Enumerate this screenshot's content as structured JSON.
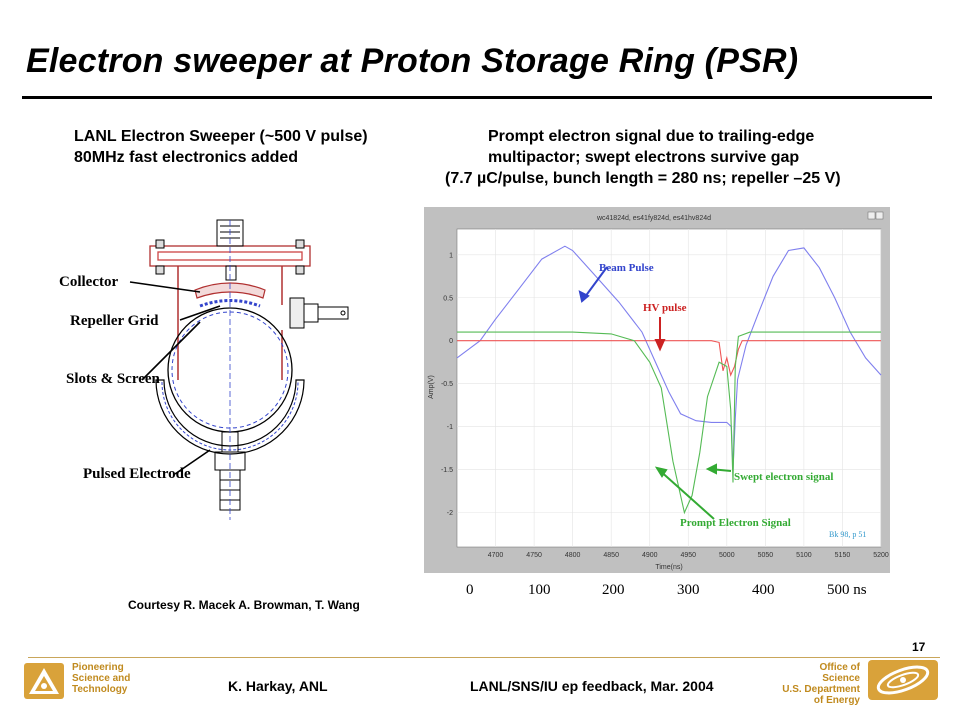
{
  "slide": {
    "title": "Electron sweeper at Proton Storage Ring (PSR)",
    "left_header": {
      "line1": "LANL Electron Sweeper (~500 V pulse)",
      "line2": "80MHz fast electronics added"
    },
    "right_header": {
      "line1": "Prompt electron signal due to trailing-edge",
      "line2": "multipactor; swept electrons survive gap",
      "line3": "(7.7 µC/pulse, bunch length = 280 ns; repeller –25 V)"
    },
    "diagram_labels": {
      "collector": "Collector",
      "repeller_grid": "Repeller Grid",
      "slots_screen": "Slots & Screen",
      "pulsed_electrode": "Pulsed Electrode"
    },
    "courtesy": "Courtesy  R. Macek  A. Browman,  T. Wang",
    "time_axis": [
      "0",
      "100",
      "200",
      "300",
      "400",
      "500 ns"
    ],
    "page_number": "17",
    "footer": {
      "author": "K. Harkay, ANL",
      "event": "LANL/SNS/IU ep feedback, Mar. 2004",
      "anl_lines": [
        "Pioneering",
        "Science and",
        "Technology"
      ],
      "doe_lines": [
        "Office of Science",
        "U.S. Department",
        "of Energy"
      ]
    },
    "colors": {
      "gold": "#c08a1e",
      "beam": "#8080ee",
      "hv": "#ee5555",
      "prompt": "#55bb55"
    }
  },
  "chart_data": {
    "type": "line",
    "title": "wc41824d, es41fy824d, es41hv824d",
    "xlabel": "Time(ns)",
    "ylabel": "Amp(V)",
    "xlim": [
      4650,
      5200
    ],
    "ylim": [
      -2.4,
      1.3
    ],
    "x_ticks": [
      "4700",
      "4750",
      "4800",
      "4850",
      "4900",
      "4950",
      "5000",
      "5050",
      "5100",
      "5150",
      "5200"
    ],
    "y_ticks": [
      "1",
      "0.5",
      "0",
      "-0.5",
      "-1",
      "-1.5",
      "-2"
    ],
    "grid": true,
    "annotations": {
      "beam": "Beam Pulse",
      "hv": "HV pulse",
      "swept": "Swept electron signal",
      "prompt": "Prompt Electron Signal",
      "ref": "Bk 98, p 51"
    },
    "series": [
      {
        "name": "Beam Pulse",
        "color": "#8080ee",
        "x": [
          4650,
          4680,
          4700,
          4730,
          4760,
          4790,
          4800,
          4830,
          4860,
          4890,
          4910,
          4925,
          4940,
          4960,
          4980,
          5000,
          5006,
          5008,
          5011,
          5014,
          5025,
          5040,
          5060,
          5080,
          5100,
          5120,
          5140,
          5160,
          5180,
          5200
        ],
        "y": [
          -0.2,
          0.0,
          0.25,
          0.6,
          0.95,
          1.1,
          1.05,
          0.75,
          0.45,
          0.1,
          -0.3,
          -0.6,
          -0.85,
          -0.93,
          -0.95,
          -0.95,
          -1.0,
          -1.5,
          -0.9,
          -0.45,
          -0.05,
          0.3,
          0.75,
          1.05,
          1.08,
          0.85,
          0.5,
          0.1,
          -0.2,
          -0.4
        ]
      },
      {
        "name": "HV pulse",
        "color": "#ee5555",
        "x": [
          4650,
          4700,
          4750,
          4800,
          4850,
          4900,
          4950,
          4980,
          4990,
          4995,
          5000,
          5005,
          5010,
          5015,
          5020,
          5050,
          5100,
          5150,
          5200
        ],
        "y": [
          0.0,
          0.0,
          0.0,
          0.0,
          0.0,
          0.0,
          0.0,
          0.0,
          -0.02,
          -0.35,
          -0.2,
          -0.4,
          -0.3,
          -0.1,
          0.0,
          0.0,
          0.0,
          0.0,
          0.0
        ]
      },
      {
        "name": "Prompt Electron Signal",
        "color": "#55bb55",
        "x": [
          4650,
          4700,
          4750,
          4800,
          4850,
          4880,
          4900,
          4915,
          4930,
          4945,
          4955,
          4965,
          4975,
          4990,
          5000,
          5005,
          5008,
          5011,
          5015,
          5030,
          5060,
          5100,
          5150,
          5200
        ],
        "y": [
          0.1,
          0.1,
          0.1,
          0.1,
          0.08,
          0.0,
          -0.25,
          -0.55,
          -1.4,
          -2.0,
          -1.8,
          -1.3,
          -0.65,
          -0.25,
          -0.3,
          -0.8,
          -1.65,
          -0.3,
          0.05,
          0.1,
          0.1,
          0.1,
          0.1,
          0.1
        ]
      }
    ]
  }
}
